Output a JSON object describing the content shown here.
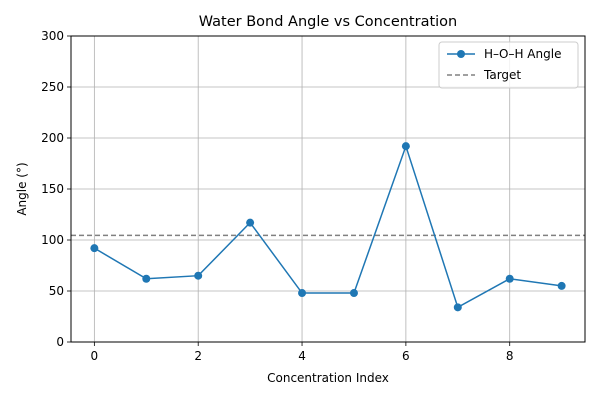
{
  "chart_data": {
    "type": "line",
    "title": "Water Bond Angle vs Concentration",
    "xlabel": "Concentration Index",
    "ylabel": "Angle (°)",
    "x": [
      0,
      1,
      2,
      3,
      4,
      5,
      6,
      7,
      8,
      9
    ],
    "xlim": [
      -0.45,
      9.45
    ],
    "ylim": [
      0,
      300
    ],
    "xticks": [
      0,
      2,
      4,
      6,
      8
    ],
    "yticks": [
      0,
      50,
      100,
      150,
      200,
      250,
      300
    ],
    "grid": true,
    "legend_position": "top-right",
    "series": [
      {
        "name": "H–O–H Angle",
        "values": [
          92,
          62,
          65,
          117,
          48,
          48,
          192,
          34,
          62,
          55
        ],
        "color": "#1f77b4",
        "style": "solid",
        "marker": "circle"
      }
    ],
    "reference_lines": [
      {
        "name": "Target",
        "y": 104.5,
        "color": "#808080",
        "style": "dashed"
      }
    ]
  }
}
